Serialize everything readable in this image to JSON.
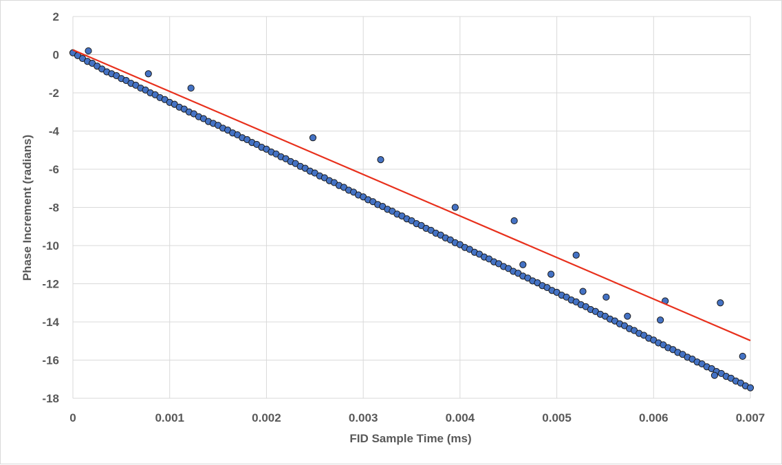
{
  "chart_data": {
    "type": "scatter",
    "title": "",
    "xlabel": "FID Sample Time (ms)",
    "ylabel": "Phase Increment (radians)",
    "xlim": [
      0,
      0.007
    ],
    "ylim": [
      -18,
      2
    ],
    "x_ticks": [
      0,
      0.001,
      0.002,
      0.003,
      0.004,
      0.005,
      0.006,
      0.007
    ],
    "x_tick_labels": [
      "0",
      "0.001",
      "0.002",
      "0.003",
      "0.004",
      "0.005",
      "0.006",
      "0.007"
    ],
    "y_ticks": [
      2,
      0,
      -2,
      -4,
      -6,
      -8,
      -10,
      -12,
      -14,
      -16,
      -18
    ],
    "y_tick_labels": [
      "2",
      "0",
      "-2",
      "-4",
      "-6",
      "-8",
      "-10",
      "-12",
      "-14",
      "-16",
      "-18"
    ],
    "grid": true,
    "legend": "none",
    "colors": {
      "marker_fill": "#4472c4",
      "marker_edge": "#1a1a1a",
      "trend_line": "#e8301c",
      "grid": "#d9d9d9",
      "zero_line": "#bfbfbf"
    },
    "series": [
      {
        "name": "Phase Increment",
        "x": [
          0,
          5e-05,
          0.0001,
          0.00015,
          0.0002,
          0.00025,
          0.0003,
          0.00035,
          0.0004,
          0.00045,
          0.0005,
          0.00055,
          0.0006,
          0.00065,
          0.0007,
          0.00075,
          0.0008,
          0.00085,
          0.0009,
          0.00095,
          0.001,
          0.00105,
          0.0011,
          0.00115,
          0.0012,
          0.00125,
          0.0013,
          0.00135,
          0.0014,
          0.00145,
          0.0015,
          0.00155,
          0.0016,
          0.00165,
          0.0017,
          0.00175,
          0.0018,
          0.00185,
          0.0019,
          0.00195,
          0.002,
          0.00205,
          0.0021,
          0.00215,
          0.0022,
          0.00225,
          0.0023,
          0.00235,
          0.0024,
          0.00245,
          0.0025,
          0.00255,
          0.0026,
          0.00265,
          0.0027,
          0.00275,
          0.0028,
          0.00285,
          0.0029,
          0.00295,
          0.003,
          0.00305,
          0.0031,
          0.00315,
          0.0032,
          0.00325,
          0.0033,
          0.00335,
          0.0034,
          0.00345,
          0.0035,
          0.00355,
          0.0036,
          0.00365,
          0.0037,
          0.00375,
          0.0038,
          0.00385,
          0.0039,
          0.00395,
          0.004,
          0.00405,
          0.0041,
          0.00415,
          0.0042,
          0.00425,
          0.0043,
          0.00435,
          0.0044,
          0.00445,
          0.0045,
          0.00455,
          0.0046,
          0.00465,
          0.0047,
          0.00475,
          0.0048,
          0.00485,
          0.0049,
          0.00495,
          0.005,
          0.00505,
          0.0051,
          0.00515,
          0.0052,
          0.00525,
          0.0053,
          0.00535,
          0.0054,
          0.00545,
          0.0055,
          0.00555,
          0.0056,
          0.00565,
          0.0057,
          0.00575,
          0.0058,
          0.00585,
          0.0059,
          0.00595,
          0.006,
          0.00605,
          0.0061,
          0.00615,
          0.0062,
          0.00625,
          0.0063,
          0.00635,
          0.0064,
          0.00645,
          0.0065,
          0.00655,
          0.0066,
          0.00665,
          0.0067,
          0.00675,
          0.0068,
          0.00685,
          0.0069,
          0.00695,
          0.007,
          0.00016,
          0.00078,
          0.00122,
          0.00248,
          0.00318,
          0.00395,
          0.00456,
          0.00465,
          0.00494,
          0.00527,
          0.00551,
          0.00573,
          0.00607,
          0.00663,
          0.00669,
          0.00692,
          0.0052,
          0.00612
        ],
        "y": [
          0.1,
          -0.05,
          -0.2,
          -0.35,
          -0.45,
          -0.6,
          -0.75,
          -0.9,
          -1.0,
          -1.1,
          -1.25,
          -1.35,
          -1.5,
          -1.6,
          -1.75,
          -1.85,
          -2.0,
          -2.1,
          -2.25,
          -2.35,
          -2.5,
          -2.6,
          -2.75,
          -2.85,
          -3.0,
          -3.1,
          -3.25,
          -3.35,
          -3.5,
          -3.6,
          -3.7,
          -3.85,
          -3.95,
          -4.1,
          -4.2,
          -4.35,
          -4.45,
          -4.6,
          -4.7,
          -4.85,
          -4.95,
          -5.1,
          -5.2,
          -5.35,
          -5.45,
          -5.6,
          -5.7,
          -5.85,
          -5.95,
          -6.1,
          -6.2,
          -6.35,
          -6.45,
          -6.6,
          -6.7,
          -6.85,
          -6.95,
          -7.1,
          -7.2,
          -7.35,
          -7.45,
          -7.6,
          -7.7,
          -7.85,
          -7.95,
          -8.1,
          -8.2,
          -8.35,
          -8.45,
          -8.6,
          -8.7,
          -8.85,
          -8.95,
          -9.1,
          -9.2,
          -9.35,
          -9.45,
          -9.6,
          -9.7,
          -9.85,
          -9.95,
          -10.1,
          -10.2,
          -10.35,
          -10.45,
          -10.6,
          -10.7,
          -10.85,
          -10.95,
          -11.1,
          -11.2,
          -11.35,
          -11.45,
          -11.6,
          -11.7,
          -11.85,
          -11.95,
          -12.1,
          -12.2,
          -12.35,
          -12.45,
          -12.6,
          -12.7,
          -12.85,
          -12.95,
          -13.1,
          -13.2,
          -13.35,
          -13.45,
          -13.6,
          -13.7,
          -13.85,
          -13.95,
          -14.1,
          -14.2,
          -14.35,
          -14.45,
          -14.6,
          -14.7,
          -14.85,
          -14.95,
          -15.1,
          -15.2,
          -15.35,
          -15.45,
          -15.6,
          -15.7,
          -15.85,
          -15.95,
          -16.1,
          -16.2,
          -16.35,
          -16.45,
          -16.6,
          -16.7,
          -16.85,
          -16.95,
          -17.1,
          -17.2,
          -17.35,
          -17.45,
          0.2,
          -1.0,
          -1.75,
          -4.35,
          -5.5,
          -8.0,
          -8.7,
          -11.0,
          -11.5,
          -12.4,
          -12.7,
          -13.7,
          -13.9,
          -16.8,
          -13.0,
          -15.8,
          -10.5,
          -12.9
        ]
      }
    ],
    "trend_line": {
      "type": "linear",
      "slope": -2175,
      "intercept": 0.25
    }
  }
}
